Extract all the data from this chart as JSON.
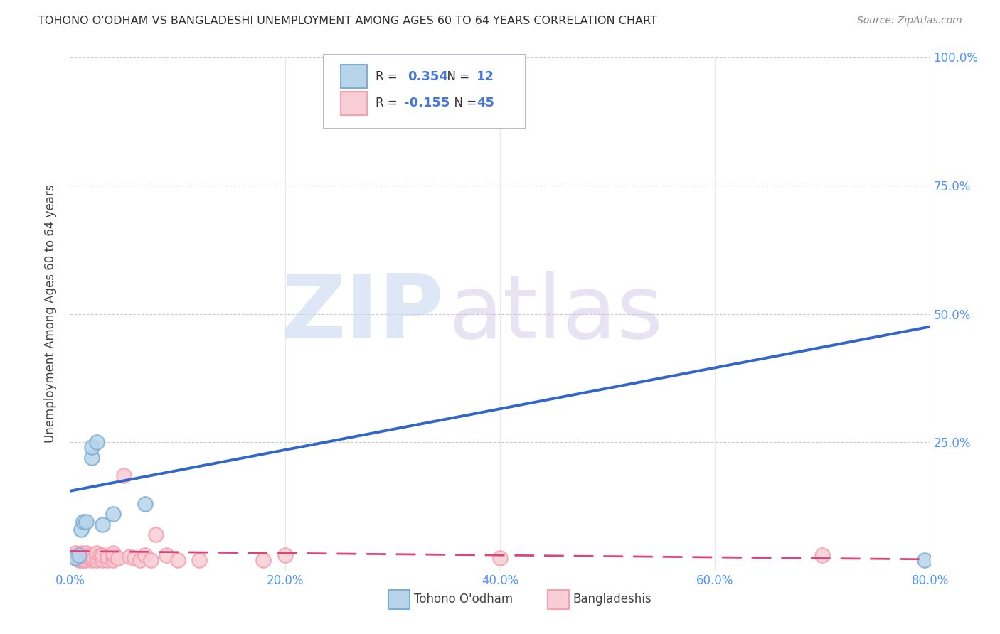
{
  "title": "TOHONO O'ODHAM VS BANGLADESHI UNEMPLOYMENT AMONG AGES 60 TO 64 YEARS CORRELATION CHART",
  "source": "Source: ZipAtlas.com",
  "ylabel": "Unemployment Among Ages 60 to 64 years",
  "watermark_zip": "ZIP",
  "watermark_atlas": "atlas",
  "blue_R": 0.354,
  "blue_N": 12,
  "pink_R": -0.155,
  "pink_N": 45,
  "blue_color": "#7bafd4",
  "blue_fill": "#b8d4ea",
  "pink_color": "#f4a0b0",
  "pink_fill": "#f9cdd5",
  "trend_blue": "#3366cc",
  "trend_pink": "#dd4477",
  "xlim": [
    0.0,
    0.8
  ],
  "ylim": [
    0.0,
    1.0
  ],
  "xticks": [
    0.0,
    0.2,
    0.4,
    0.6,
    0.8
  ],
  "xtick_labels": [
    "0.0%",
    "20.0%",
    "40.0%",
    "60.0%",
    "80.0%"
  ],
  "yticks": [
    0.0,
    0.25,
    0.5,
    0.75,
    1.0
  ],
  "ytick_labels": [
    "",
    "25.0%",
    "50.0%",
    "75.0%",
    "100.0%"
  ],
  "blue_line_x": [
    0.0,
    0.8
  ],
  "blue_line_y": [
    0.155,
    0.475
  ],
  "pink_line_x": [
    0.0,
    0.8
  ],
  "pink_line_y": [
    0.038,
    0.022
  ],
  "blue_points_x": [
    0.005,
    0.008,
    0.01,
    0.012,
    0.015,
    0.02,
    0.02,
    0.025,
    0.03,
    0.04,
    0.07,
    0.795
  ],
  "blue_points_y": [
    0.025,
    0.03,
    0.08,
    0.095,
    0.095,
    0.22,
    0.24,
    0.25,
    0.09,
    0.11,
    0.13,
    0.02
  ],
  "pink_points_x": [
    0.005,
    0.005,
    0.005,
    0.008,
    0.008,
    0.01,
    0.01,
    0.01,
    0.012,
    0.012,
    0.015,
    0.015,
    0.015,
    0.018,
    0.018,
    0.02,
    0.02,
    0.02,
    0.022,
    0.025,
    0.025,
    0.025,
    0.028,
    0.03,
    0.03,
    0.035,
    0.035,
    0.04,
    0.04,
    0.04,
    0.045,
    0.05,
    0.055,
    0.06,
    0.065,
    0.07,
    0.075,
    0.08,
    0.09,
    0.1,
    0.12,
    0.18,
    0.2,
    0.4,
    0.7
  ],
  "pink_points_y": [
    0.025,
    0.03,
    0.035,
    0.02,
    0.03,
    0.02,
    0.025,
    0.035,
    0.02,
    0.03,
    0.02,
    0.028,
    0.035,
    0.025,
    0.03,
    0.02,
    0.025,
    0.03,
    0.025,
    0.02,
    0.028,
    0.035,
    0.03,
    0.02,
    0.03,
    0.02,
    0.028,
    0.02,
    0.03,
    0.035,
    0.025,
    0.185,
    0.028,
    0.025,
    0.02,
    0.03,
    0.02,
    0.07,
    0.03,
    0.02,
    0.02,
    0.02,
    0.03,
    0.025,
    0.03
  ],
  "legend_label_blue": "Tohono O'odham",
  "legend_label_pink": "Bangladeshis"
}
